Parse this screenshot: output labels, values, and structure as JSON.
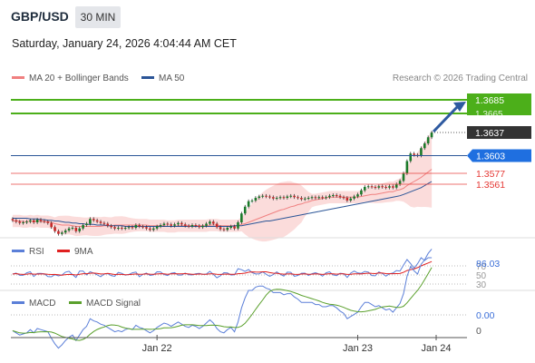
{
  "header": {
    "symbol": "GBP/USD",
    "timeframe": "30 MIN",
    "datetime": "Saturday, January 24, 2026 4:04:44 AM CET"
  },
  "legend": {
    "ma20": {
      "label": "MA 20 + Bollinger Bands",
      "color": "#f08080"
    },
    "ma50": {
      "label": "MA 50",
      "color": "#2b5597"
    }
  },
  "credit": "Research © 2026 Trading Central",
  "colors": {
    "up": "#1b7a2a",
    "down": "#c62828",
    "target": "#4caf1a",
    "current": "#333333",
    "pivot": "#1f6fe0",
    "support": "#e53935",
    "band": "#f9d0cf",
    "arrow": "#2e5aa0"
  },
  "chart_data": [
    {
      "type": "candlestick",
      "ylim": [
        1.3485,
        1.3705
      ],
      "x_ticks": [
        "Jan 22",
        "Jan 23",
        "Jan 24"
      ],
      "levels": [
        {
          "label": "1.3685",
          "value": 1.3685,
          "kind": "target"
        },
        {
          "label": "1.3665",
          "value": 1.3665,
          "kind": "target2"
        },
        {
          "label": "1.3637",
          "value": 1.3637,
          "kind": "current"
        },
        {
          "label": "1.3603",
          "value": 1.3603,
          "kind": "pivot"
        },
        {
          "label": "1.3577",
          "value": 1.3577,
          "kind": "support"
        },
        {
          "label": "1.3561",
          "value": 1.3561,
          "kind": "support"
        }
      ],
      "close": [
        1.3508,
        1.3506,
        1.3504,
        1.3505,
        1.3506,
        1.3508,
        1.3505,
        1.3509,
        1.3507,
        1.3506,
        1.3504,
        1.3498,
        1.3492,
        1.3488,
        1.349,
        1.3493,
        1.3496,
        1.3497,
        1.3492,
        1.3496,
        1.3501,
        1.3503,
        1.351,
        1.3508,
        1.3506,
        1.3504,
        1.3503,
        1.35,
        1.3498,
        1.3496,
        1.3497,
        1.3496,
        1.3497,
        1.3498,
        1.3497,
        1.3501,
        1.3499,
        1.3498,
        1.3496,
        1.3494,
        1.3496,
        1.3499,
        1.3501,
        1.3503,
        1.3502,
        1.35,
        1.3502,
        1.3504,
        1.3502,
        1.35,
        1.3499,
        1.3501,
        1.35,
        1.3498,
        1.35,
        1.3503,
        1.3506,
        1.3503,
        1.3498,
        1.3495,
        1.3494,
        1.3497,
        1.3499,
        1.3496,
        1.3505,
        1.3518,
        1.3528,
        1.3536,
        1.3537,
        1.3541,
        1.3543,
        1.3544,
        1.3543,
        1.3542,
        1.354,
        1.3541,
        1.3542,
        1.3541,
        1.3543,
        1.3544,
        1.3542,
        1.3541,
        1.3539,
        1.354,
        1.3541,
        1.3542,
        1.3541,
        1.3542,
        1.3541,
        1.3542,
        1.3544,
        1.3545,
        1.3544,
        1.3542,
        1.3541,
        1.3537,
        1.354,
        1.3543,
        1.3546,
        1.3552,
        1.3557,
        1.3558,
        1.3557,
        1.3556,
        1.3558,
        1.3557,
        1.3556,
        1.3558,
        1.3556,
        1.3561,
        1.3566,
        1.3577,
        1.3595,
        1.3606,
        1.3604,
        1.3603,
        1.3614,
        1.3621,
        1.363,
        1.3637
      ],
      "ma20": [
        1.3507,
        1.3507,
        1.3507,
        1.3506,
        1.3506,
        1.3507,
        1.3506,
        1.3507,
        1.3506,
        1.3506,
        1.3506,
        1.3505,
        1.3503,
        1.3502,
        1.3501,
        1.3501,
        1.3501,
        1.35,
        1.3499,
        1.3499,
        1.3499,
        1.3499,
        1.3499,
        1.3499,
        1.3499,
        1.3499,
        1.35,
        1.35,
        1.35,
        1.3501,
        1.3501,
        1.3501,
        1.3501,
        1.3501,
        1.3501,
        1.3501,
        1.3501,
        1.3501,
        1.3501,
        1.35,
        1.35,
        1.35,
        1.35,
        1.35,
        1.3499,
        1.3499,
        1.3499,
        1.35,
        1.35,
        1.35,
        1.35,
        1.35,
        1.35,
        1.35,
        1.35,
        1.35,
        1.3501,
        1.3501,
        1.3501,
        1.35,
        1.35,
        1.35,
        1.35,
        1.35,
        1.35,
        1.3502,
        1.3503,
        1.3505,
        1.3507,
        1.3509,
        1.3511,
        1.3513,
        1.3515,
        1.3517,
        1.3519,
        1.3521,
        1.3523,
        1.3524,
        1.3526,
        1.3528,
        1.3529,
        1.3531,
        1.3532,
        1.3534,
        1.3535,
        1.3537,
        1.3538,
        1.3539,
        1.354,
        1.3541,
        1.3542,
        1.3542,
        1.3542,
        1.3542,
        1.3542,
        1.3542,
        1.3542,
        1.3542,
        1.3542,
        1.3543,
        1.3544,
        1.3545,
        1.3546,
        1.3546,
        1.3547,
        1.3548,
        1.3549,
        1.355,
        1.355,
        1.3552,
        1.3553,
        1.3555,
        1.3559,
        1.3562,
        1.3565,
        1.3568,
        1.3571,
        1.3575,
        1.3579,
        1.3583
      ],
      "ma50": [
        1.3511,
        1.3511,
        1.3511,
        1.3511,
        1.3511,
        1.351,
        1.351,
        1.351,
        1.3509,
        1.3509,
        1.3508,
        1.3508,
        1.3507,
        1.3507,
        1.3506,
        1.3505,
        1.3505,
        1.3504,
        1.3504,
        1.3503,
        1.3503,
        1.3502,
        1.3502,
        1.3502,
        1.3501,
        1.3501,
        1.3501,
        1.35,
        1.35,
        1.35,
        1.35,
        1.35,
        1.3499,
        1.3499,
        1.3499,
        1.3499,
        1.3499,
        1.3499,
        1.3499,
        1.3499,
        1.3499,
        1.3499,
        1.3499,
        1.3499,
        1.3499,
        1.3499,
        1.3499,
        1.3499,
        1.3499,
        1.3499,
        1.3499,
        1.3499,
        1.3499,
        1.3499,
        1.3499,
        1.3499,
        1.3499,
        1.3499,
        1.3499,
        1.3499,
        1.3499,
        1.3499,
        1.3499,
        1.35,
        1.35,
        1.35,
        1.3501,
        1.3502,
        1.3503,
        1.3504,
        1.3505,
        1.3506,
        1.3507,
        1.3507,
        1.3508,
        1.3509,
        1.351,
        1.3511,
        1.3512,
        1.3513,
        1.3514,
        1.3515,
        1.3516,
        1.3517,
        1.3518,
        1.3519,
        1.352,
        1.3521,
        1.3522,
        1.3523,
        1.3524,
        1.3525,
        1.3526,
        1.3527,
        1.3528,
        1.3529,
        1.353,
        1.3531,
        1.3532,
        1.3533,
        1.3534,
        1.3535,
        1.3536,
        1.3537,
        1.3538,
        1.3539,
        1.354,
        1.3541,
        1.3542,
        1.3543,
        1.3544,
        1.3546,
        1.3548,
        1.355,
        1.3552,
        1.3554,
        1.3556,
        1.3559,
        1.3562,
        1.3565
      ]
    },
    {
      "type": "line",
      "name": "RSI",
      "series": [
        {
          "name": "RSI",
          "color": "#5b7fd8"
        },
        {
          "name": "9MA",
          "color": "#e02020"
        }
      ],
      "ylim": [
        30,
        86.03
      ],
      "ticks": [
        "70",
        "50",
        "30"
      ],
      "last_value": "86.03"
    },
    {
      "type": "line",
      "name": "MACD",
      "series": [
        {
          "name": "MACD",
          "color": "#5b7fd8"
        },
        {
          "name": "MACD Signal",
          "color": "#5aa02c"
        }
      ],
      "ticks": [
        "0.00",
        "0"
      ],
      "last_value": "0.00"
    }
  ]
}
